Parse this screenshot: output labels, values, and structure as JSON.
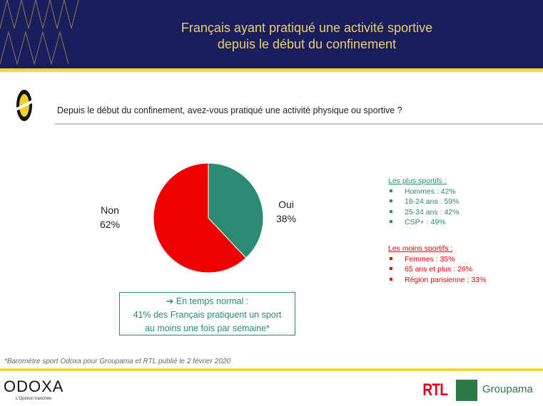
{
  "header": {
    "title_line1": "Français ayant pratiqué une activité sportive",
    "title_line2": "depuis le début du confinement"
  },
  "question": "Depuis le début du confinement, avez-vous pratiqué une activité physique ou sportive ?",
  "chart_data": {
    "type": "pie",
    "title": "Depuis le début du confinement, avez-vous pratiqué une activité physique ou sportive ?",
    "slices": [
      {
        "label": "Oui",
        "value": 38,
        "display": "38%",
        "color": "#2a8a72"
      },
      {
        "label": "Non",
        "value": 62,
        "display": "62%",
        "color": "#ee0000"
      }
    ]
  },
  "note": {
    "line1": "➔ En temps normal :",
    "line2": "41% des Français pratiquent un sport",
    "line3": "au moins une fois par semaine*"
  },
  "plus_sportifs": {
    "heading": "Les plus sportifs :",
    "color": "#2a8a72",
    "items": [
      "Hommes : 42%",
      "18-24 ans : 59%",
      "25-34 ans : 42%",
      "CSP+ : 49%"
    ]
  },
  "moins_sportifs": {
    "heading": "Les moins sportifs :",
    "color": "#ee0000",
    "items": [
      "Femmes : 35%",
      "65 ans et plus : 26%",
      "Région parisienne  : 33%"
    ]
  },
  "footnote": "*Baromètre sport Odoxa pour Groupama et RTL publié le 2 février 2020",
  "footer": {
    "odoxa": "ODOXA",
    "tagline": "L'Opinion tranchée",
    "rtl": "RTL",
    "groupama": "Groupama"
  }
}
